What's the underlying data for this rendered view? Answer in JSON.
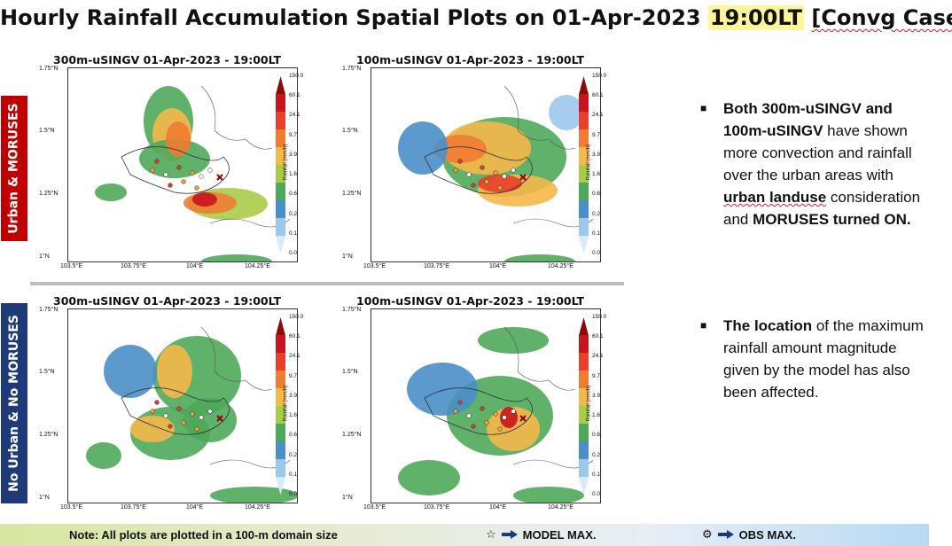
{
  "header": {
    "title_prefix": "Hourly Rainfall Accumulation Spatial Plots on 01-Apr-2023 ",
    "title_time": "19:00LT",
    "title_case": "[Convg Case]"
  },
  "rows": {
    "top_label": "Urban & MORUSES",
    "bottom_label": "No Urban & No MORUSES"
  },
  "panels": [
    {
      "title": "300m-uSINGV  01-Apr-2023 - 19:00LT"
    },
    {
      "title": "100m-uSINGV  01-Apr-2023 - 19:00LT"
    },
    {
      "title": "300m-uSINGV  01-Apr-2023 - 19:00LT"
    },
    {
      "title": "100m-uSINGV  01-Apr-2023 - 19:00LT"
    }
  ],
  "axes": {
    "lat_ticks": [
      "1.75°N",
      "1.5°N",
      "1.25°N",
      "1°N"
    ],
    "lon_ticks": [
      "103.5°E",
      "103.75°E",
      "104°E",
      "104.25°E"
    ]
  },
  "colorbar": {
    "unit_label": "Rainfall (mm/h)",
    "levels": [
      "150.0",
      "60.1",
      "24.1",
      "9.7",
      "3.9",
      "1.6",
      "0.6",
      "0.2",
      "0.1",
      "0.0"
    ],
    "colors": [
      "#8b0a0a",
      "#c8141e",
      "#e8402a",
      "#f07c33",
      "#f5b84a",
      "#a8cc48",
      "#4fa85a",
      "#4a8fc8",
      "#9cc8ec",
      "#d8ecf8"
    ]
  },
  "bullets": [
    {
      "mark": "■",
      "parts": [
        {
          "t": "Both 300m-uSINGV and 100m-uSINGV",
          "b": true
        },
        {
          "t": " have shown more convection and rainfall over the urban areas with "
        },
        {
          "t": "urban landuse",
          "b": true,
          "w": true
        },
        {
          "t": " consideration and "
        },
        {
          "t": "MORUSES turned ON.",
          "b": true
        }
      ]
    },
    {
      "mark": "■",
      "parts": [
        {
          "t": "The location",
          "b": true
        },
        {
          "t": " of the maximum rainfall amount magnitude given by the model has also been affected."
        }
      ]
    }
  ],
  "footer": {
    "note": "Note: All plots are plotted in a 100-m domain size",
    "model_symbol": "☆",
    "model_label": "MODEL MAX.",
    "obs_symbol": "⚙",
    "obs_label": "OBS MAX."
  }
}
